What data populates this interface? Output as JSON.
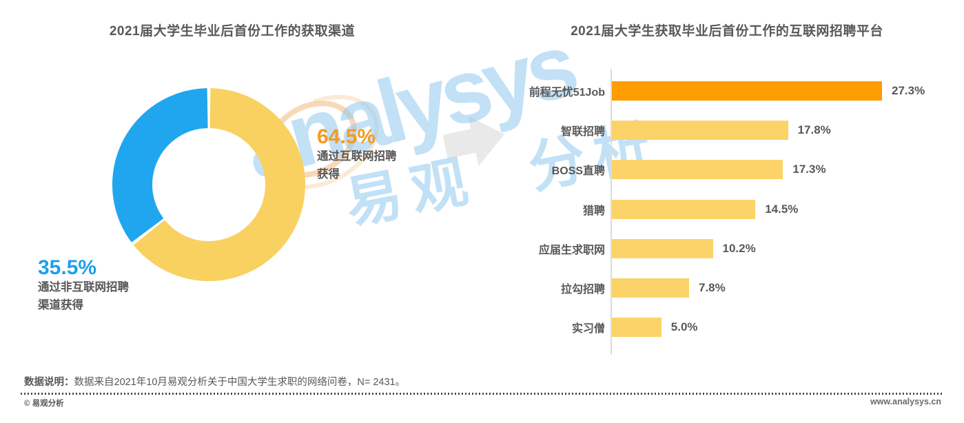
{
  "left_chart": {
    "title": "2021届大学生毕业后首份工作的获取渠道",
    "primary": {
      "value": "64.5%",
      "lines": [
        "通过互联网招聘",
        "获得"
      ]
    },
    "secondary": {
      "value": "35.5%",
      "lines": [
        "通过非互联网招聘",
        "渠道获得"
      ]
    }
  },
  "right_chart": {
    "title": "2021届大学生获取毕业后首份工作的互联网招聘平台"
  },
  "chart_data": [
    {
      "type": "pie",
      "donut": true,
      "title": "2021届大学生毕业后首份工作的获取渠道",
      "labels": [
        "通过互联网招聘获得",
        "通过非互联网招聘渠道获得"
      ],
      "values": [
        64.5,
        35.5
      ],
      "value_labels": [
        "64.5%",
        "35.5%"
      ],
      "colors": [
        "#F9D160",
        "#1FA6EF"
      ],
      "start_angle": "top",
      "direction": "clockwise"
    },
    {
      "type": "bar",
      "orientation": "horizontal",
      "title": "2021届大学生获取毕业后首份工作的互联网招聘平台",
      "categories": [
        "前程无忧51Job",
        "智联招聘",
        "BOSS直聘",
        "猎聘",
        "应届生求职网",
        "拉勾招聘",
        "实习僧"
      ],
      "values": [
        27.3,
        17.8,
        17.3,
        14.5,
        10.2,
        7.8,
        5.0
      ],
      "value_labels": [
        "27.3%",
        "17.8%",
        "17.3%",
        "14.5%",
        "10.2%",
        "7.8%",
        "5.0%"
      ],
      "bar_colors": [
        "#FF9C00",
        "#FBD369",
        "#FBD369",
        "#FBD369",
        "#FBD369",
        "#FBD369",
        "#FBD369"
      ],
      "xlim": [
        0,
        30
      ],
      "grid": false,
      "value_label_position": "right"
    }
  ],
  "watermark": {
    "text_en": "analysys",
    "text_cn": "易观 分析"
  },
  "footer": {
    "note_prefix": "数据说明：",
    "note_text": "数据来自2021年10月易观分析关于中国大学生求职的网络问卷，N= 2431。",
    "copyright": "© 易观分析",
    "website": "www.analysys.cn"
  },
  "colors": {
    "highlight_bar": "#FF9C00",
    "bar_yellow": "#FBD369",
    "donut_yellow": "#F9D160",
    "donut_blue": "#1FA6EF",
    "value_orange": "#F59A23",
    "value_blue": "#1E9FEA",
    "text_dark": "#595757",
    "axis_gray": "#DCDCDC"
  }
}
